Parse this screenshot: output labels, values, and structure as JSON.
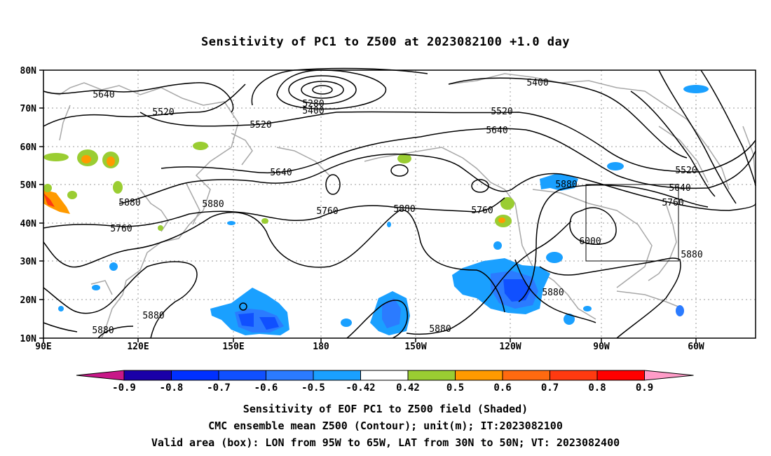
{
  "title": "Sensitivity of PC1 to Z500 at 2023082100 +1.0 day",
  "lat_labels": [
    "80N",
    "70N",
    "60N",
    "50N",
    "40N",
    "30N",
    "20N",
    "10N"
  ],
  "lon_labels": [
    "90E",
    "120E",
    "150E",
    "180",
    "150W",
    "120W",
    "90W",
    "60W"
  ],
  "contour_labels": [
    "5640",
    "5520",
    "5520",
    "5280",
    "5400",
    "5520",
    "5640",
    "5400",
    "5520",
    "5640",
    "5760",
    "5880",
    "5640",
    "5880",
    "5760",
    "5880",
    "5760",
    "5880",
    "6000",
    "5880",
    "5880",
    "5880",
    "5880",
    "5880",
    "5760"
  ],
  "colorbar": {
    "labels": [
      "-0.9",
      "-0.8",
      "-0.7",
      "-0.6",
      "-0.5",
      "-0.42",
      "0.42",
      "0.5",
      "0.6",
      "0.7",
      "0.8",
      "0.9"
    ],
    "colors": [
      "#1a00a8",
      "#0030ff",
      "#1050ff",
      "#2b7bff",
      "#1aa0ff",
      "#ffffff",
      "#9acd32",
      "#ff9a00",
      "#ff6a10",
      "#ff3a10",
      "#ff0000"
    ],
    "low_extend_color": "#c81888",
    "high_extend_color": "#ff9cc8"
  },
  "captions": [
    "Sensitivity of EOF PC1 to Z500 field (Shaded)",
    "CMC ensemble mean Z500 (Contour); unit(m); IT:2023082100",
    "Valid area (box): LON from 95W to 65W, LAT from 30N to 50N; VT: 2023082400"
  ],
  "valid_box": {
    "lon_west": "95W",
    "lon_east": "65W",
    "lat_south": "30N",
    "lat_north": "50N"
  },
  "colors": {
    "contour": "#000000",
    "coastline": "#a8a8a8",
    "grid": "#9a9a9a"
  }
}
